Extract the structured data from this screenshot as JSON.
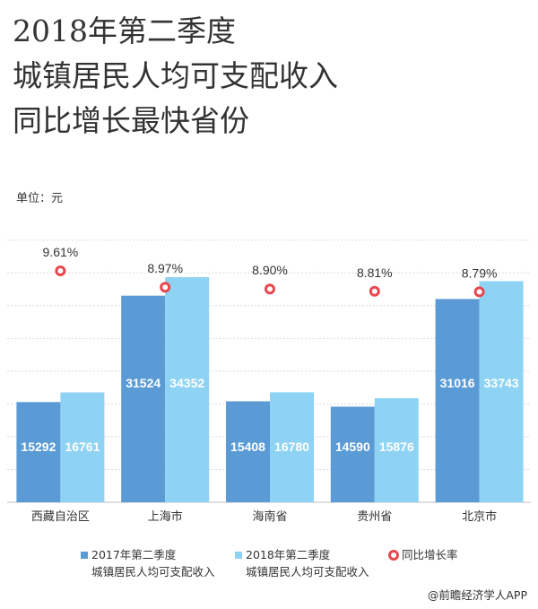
{
  "title_lines": [
    "2018年第二季度",
    "城镇居民人均可支配收入",
    "同比增长最快省份"
  ],
  "unit_label": "单位：元",
  "source": "@前瞻经济学人APP",
  "colors": {
    "series_2017": "#5b9bd5",
    "series_2018": "#8fd3f4",
    "growth_marker": "#e8474f",
    "gridline": "#d9d9d9"
  },
  "legend": {
    "series_2017": [
      "2017年第二季度",
      "城镇居民人均可支配收入"
    ],
    "series_2018": [
      "2018年第二季度",
      "城镇居民人均可支配收入"
    ],
    "growth": "同比增长率"
  },
  "chart_data": {
    "type": "bar",
    "categories": [
      "西藏自治区",
      "上海市",
      "海南省",
      "贵州省",
      "北京市"
    ],
    "series": [
      {
        "name": "2017年第二季度城镇居民人均可支配收入",
        "values": [
          15292,
          31524,
          15408,
          14590,
          31016
        ]
      },
      {
        "name": "2018年第二季度城镇居民人均可支配收入",
        "values": [
          16761,
          34352,
          16780,
          15876,
          33743
        ]
      }
    ],
    "growth_rate": {
      "name": "同比增长率",
      "values": [
        9.61,
        8.97,
        8.9,
        8.81,
        8.79
      ],
      "labels": [
        "9.61%",
        "8.97%",
        "8.90%",
        "8.81%",
        "8.79%"
      ]
    },
    "ylim": [
      0,
      40000
    ],
    "grid": true,
    "legend_position": "bottom"
  }
}
